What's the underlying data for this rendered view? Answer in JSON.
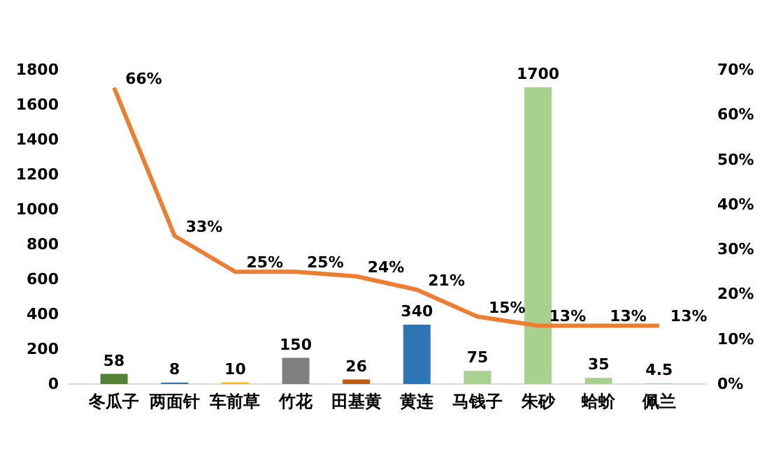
{
  "chart_data": {
    "type": "bar",
    "categories": [
      "冬瓜子",
      "两面针",
      "车前草",
      "竹花",
      "田基黄",
      "黄连",
      "马钱子",
      "朱砂",
      "蛤蚧",
      "佩兰"
    ],
    "ylim": [
      0,
      1800
    ],
    "yticks": [
      0,
      200,
      400,
      600,
      800,
      1000,
      1200,
      1400,
      1600,
      1800
    ],
    "y2lim": [
      0,
      70
    ],
    "y2ticks": [
      {
        "value": 0,
        "label": "0%"
      },
      {
        "value": 10,
        "label": "10%"
      },
      {
        "value": 20,
        "label": "20%"
      },
      {
        "value": 30,
        "label": "30%"
      },
      {
        "value": 40,
        "label": "40%"
      },
      {
        "value": 50,
        "label": "50%"
      },
      {
        "value": 60,
        "label": "60%"
      },
      {
        "value": 70,
        "label": "70%"
      }
    ],
    "grid": false,
    "marker": "none",
    "line_style": "solid",
    "series": [
      {
        "colors": [
          "#548235",
          "#2e75b6",
          "#ffc000",
          "#7f7f7f",
          "#c55a11",
          "#2e75b6",
          "#a9d18e",
          "#a9d18e",
          "#a9d18e",
          "#a9d18e"
        ],
        "values": [
          58,
          8,
          10,
          150,
          26,
          340,
          75,
          1700,
          35,
          4.5
        ],
        "value_labels": [
          "58",
          "8",
          "10",
          "150",
          "26",
          "340",
          "75",
          "1700",
          "35",
          "4.5"
        ]
      },
      {
        "type": "line",
        "axis": "y2",
        "color": "#ed7d31",
        "values": [
          66,
          33,
          25,
          25,
          24,
          21,
          15,
          13,
          13,
          13
        ],
        "value_labels": [
          "66%",
          "33%",
          "25%",
          "25%",
          "24%",
          "21%",
          "15%",
          "13%",
          "13%",
          "13%"
        ]
      }
    ]
  }
}
